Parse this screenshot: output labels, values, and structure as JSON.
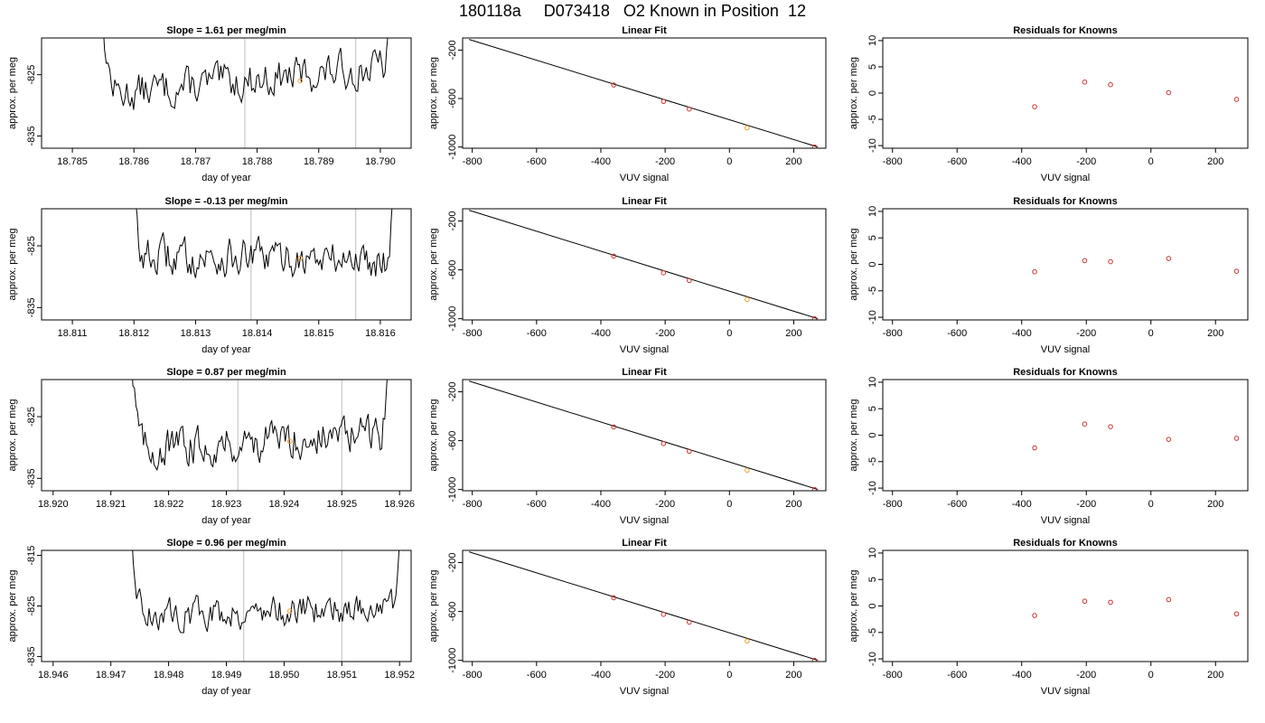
{
  "figure": {
    "title": "180118a     D073418   O2 Known in Position  12",
    "trace_color": "#000000",
    "marker_color": "#f0a030",
    "point_color": "#cc3333",
    "vline_color": "#c8c8c8"
  },
  "rows": [
    {
      "trace": {
        "type": "line",
        "title": "Slope =  1.61  per meg/min",
        "xlabel": "day of year",
        "ylabel": "approx. per meg",
        "xlim": [
          18.7845,
          18.7905
        ],
        "ylim": [
          -837,
          -819
        ],
        "xticks": [
          "18.785",
          "18.786",
          "18.787",
          "18.788",
          "18.789",
          "18.790"
        ],
        "xtick_values": [
          18.785,
          18.786,
          18.787,
          18.788,
          18.789,
          18.79
        ],
        "yticks": [
          "-825",
          "-835"
        ],
        "ytick_values": [
          -825,
          -835
        ],
        "vlines": [
          18.7878,
          18.7896
        ],
        "x_start": 18.7853,
        "x_end": 18.7903,
        "base": -826,
        "trend": 5,
        "marker": {
          "x": 18.7887,
          "y": -826
        }
      },
      "fit": {
        "type": "line",
        "title": "Linear Fit",
        "xlabel": "VUV signal",
        "ylabel": "approx. per meg",
        "xlim": [
          -830,
          300
        ],
        "ylim": [
          -1010,
          -100
        ],
        "xticks": [
          "-800",
          "-600",
          "-400",
          "-200",
          "0",
          "200"
        ],
        "xtick_values": [
          -800,
          -600,
          -400,
          -200,
          0,
          200
        ],
        "yticks": [
          "-200",
          "-600",
          "-1000"
        ],
        "ytick_values": [
          -200,
          -600,
          -1000
        ],
        "line": {
          "x": [
            -810,
            275
          ],
          "y": [
            -112,
            -1000
          ]
        },
        "points_x": [
          -360,
          -205,
          -125,
          55,
          265
        ],
        "points_y": [
          -488,
          -624,
          -687,
          -842,
          -1000
        ]
      },
      "resid": {
        "type": "scatter",
        "title": "Residuals for Knowns",
        "xlabel": "VUV signal",
        "ylabel": "approx. per meg",
        "xlim": [
          -830,
          300
        ],
        "ylim": [
          -10.5,
          10.5
        ],
        "xticks": [
          "-800",
          "-600",
          "-400",
          "-200",
          "0",
          "200"
        ],
        "xtick_values": [
          -800,
          -600,
          -400,
          -200,
          0,
          200
        ],
        "yticks": [
          "10",
          "5",
          "0",
          "-5",
          "-10"
        ],
        "ytick_values": [
          10,
          5,
          0,
          -5,
          -10
        ],
        "x": [
          -360,
          -205,
          -125,
          55,
          265
        ],
        "y": [
          -2.6,
          2.1,
          1.6,
          0.1,
          -1.2
        ]
      }
    },
    {
      "trace": {
        "type": "line",
        "title": "Slope =  -0.13  per meg/min",
        "xlabel": "day of year",
        "ylabel": "approx. per meg",
        "xlim": [
          18.8105,
          18.8165
        ],
        "ylim": [
          -837,
          -819
        ],
        "xticks": [
          "18.811",
          "18.812",
          "18.813",
          "18.814",
          "18.815",
          "18.816"
        ],
        "xtick_values": [
          18.811,
          18.812,
          18.813,
          18.814,
          18.815,
          18.816
        ],
        "yticks": [
          "-825",
          "-835"
        ],
        "ytick_values": [
          -825,
          -835
        ],
        "vlines": [
          18.8139,
          18.8156
        ],
        "x_start": 18.8118,
        "x_end": 18.8163,
        "base": -827,
        "trend": -0.5,
        "marker": {
          "x": 18.8147,
          "y": -827
        }
      },
      "fit": {
        "type": "line",
        "title": "Linear Fit",
        "xlabel": "VUV signal",
        "ylabel": "approx. per meg",
        "xlim": [
          -830,
          300
        ],
        "ylim": [
          -1010,
          -100
        ],
        "xticks": [
          "-800",
          "-600",
          "-400",
          "-200",
          "0",
          "200"
        ],
        "xtick_values": [
          -800,
          -600,
          -400,
          -200,
          0,
          200
        ],
        "yticks": [
          "-200",
          "-600",
          "-1000"
        ],
        "ytick_values": [
          -200,
          -600,
          -1000
        ],
        "line": {
          "x": [
            -810,
            275
          ],
          "y": [
            -112,
            -1000
          ]
        },
        "points_x": [
          -360,
          -205,
          -125,
          55,
          265
        ],
        "points_y": [
          -488,
          -624,
          -687,
          -842,
          -1000
        ]
      },
      "resid": {
        "type": "scatter",
        "title": "Residuals for Knowns",
        "xlabel": "VUV signal",
        "ylabel": "approx. per meg",
        "xlim": [
          -830,
          300
        ],
        "ylim": [
          -10.5,
          10.5
        ],
        "xticks": [
          "-800",
          "-600",
          "-400",
          "-200",
          "0",
          "200"
        ],
        "xtick_values": [
          -800,
          -600,
          -400,
          -200,
          0,
          200
        ],
        "yticks": [
          "10",
          "5",
          "0",
          "-5",
          "-10"
        ],
        "ytick_values": [
          10,
          5,
          0,
          -5,
          -10
        ],
        "x": [
          -360,
          -205,
          -125,
          55,
          265
        ],
        "y": [
          -1.4,
          0.7,
          0.5,
          1.1,
          -1.3
        ]
      }
    },
    {
      "trace": {
        "type": "line",
        "title": "Slope =  0.87  per meg/min",
        "xlabel": "day of year",
        "ylabel": "approx. per meg",
        "xlim": [
          18.9198,
          18.9262
        ],
        "ylim": [
          -837,
          -819
        ],
        "xticks": [
          "18.920",
          "18.921",
          "18.922",
          "18.923",
          "18.924",
          "18.925",
          "18.926"
        ],
        "xtick_values": [
          18.92,
          18.921,
          18.922,
          18.923,
          18.924,
          18.925,
          18.926
        ],
        "yticks": [
          "-825",
          "-835"
        ],
        "ytick_values": [
          -825,
          -835
        ],
        "vlines": [
          18.9232,
          18.925
        ],
        "x_start": 18.9212,
        "x_end": 18.9259,
        "base": -829,
        "trend": 3,
        "marker": {
          "x": 18.9241,
          "y": -829
        }
      },
      "fit": {
        "type": "line",
        "title": "Linear Fit",
        "xlabel": "VUV signal",
        "ylabel": "approx. per meg",
        "xlim": [
          -830,
          300
        ],
        "ylim": [
          -1010,
          -100
        ],
        "xticks": [
          "-800",
          "-600",
          "-400",
          "-200",
          "0",
          "200"
        ],
        "xtick_values": [
          -800,
          -600,
          -400,
          -200,
          0,
          200
        ],
        "yticks": [
          "-200",
          "-600",
          "-1000"
        ],
        "ytick_values": [
          -200,
          -600,
          -1000
        ],
        "line": {
          "x": [
            -810,
            275
          ],
          "y": [
            -112,
            -1000
          ]
        },
        "points_x": [
          -360,
          -205,
          -125,
          55,
          265
        ],
        "points_y": [
          -488,
          -624,
          -687,
          -842,
          -1000
        ]
      },
      "resid": {
        "type": "scatter",
        "title": "Residuals for Knowns",
        "xlabel": "VUV signal",
        "ylabel": "approx. per meg",
        "xlim": [
          -830,
          300
        ],
        "ylim": [
          -10.5,
          10.5
        ],
        "xticks": [
          "-800",
          "-600",
          "-400",
          "-200",
          "0",
          "200"
        ],
        "xtick_values": [
          -800,
          -600,
          -400,
          -200,
          0,
          200
        ],
        "yticks": [
          "10",
          "5",
          "0",
          "-5",
          "-10"
        ],
        "ytick_values": [
          10,
          5,
          0,
          -5,
          -10
        ],
        "x": [
          -360,
          -205,
          -125,
          55,
          265
        ],
        "y": [
          -2.4,
          2.1,
          1.6,
          -0.8,
          -0.6
        ]
      }
    },
    {
      "trace": {
        "type": "line",
        "title": "Slope =  0.96  per meg/min",
        "xlabel": "day of year",
        "ylabel": "approx. per meg",
        "xlim": [
          18.9458,
          18.9522
        ],
        "ylim": [
          -836,
          -814
        ],
        "xticks": [
          "18.946",
          "18.947",
          "18.948",
          "18.949",
          "18.950",
          "18.951",
          "18.952"
        ],
        "xtick_values": [
          18.946,
          18.947,
          18.948,
          18.949,
          18.95,
          18.951,
          18.952
        ],
        "yticks": [
          "-815",
          "-825",
          "-835"
        ],
        "ytick_values": [
          -815,
          -825,
          -835
        ],
        "vlines": [
          18.9493,
          18.951
        ],
        "x_start": 18.9472,
        "x_end": 18.9521,
        "base": -826,
        "trend": 2,
        "marker": {
          "x": 18.9501,
          "y": -826
        }
      },
      "fit": {
        "type": "line",
        "title": "Linear Fit",
        "xlabel": "VUV signal",
        "ylabel": "approx. per meg",
        "xlim": [
          -830,
          300
        ],
        "ylim": [
          -1010,
          -100
        ],
        "xticks": [
          "-800",
          "-600",
          "-400",
          "-200",
          "0",
          "200"
        ],
        "xtick_values": [
          -800,
          -600,
          -400,
          -200,
          0,
          200
        ],
        "yticks": [
          "-200",
          "-600",
          "-1000"
        ],
        "ytick_values": [
          -200,
          -600,
          -1000
        ],
        "line": {
          "x": [
            -810,
            275
          ],
          "y": [
            -112,
            -1000
          ]
        },
        "points_x": [
          -360,
          -205,
          -125,
          55,
          265
        ],
        "points_y": [
          -488,
          -624,
          -687,
          -842,
          -1000
        ]
      },
      "resid": {
        "type": "scatter",
        "title": "Residuals for Knowns",
        "xlabel": "VUV signal",
        "ylabel": "approx. per meg",
        "xlim": [
          -830,
          300
        ],
        "ylim": [
          -10.5,
          10.5
        ],
        "xticks": [
          "-800",
          "-600",
          "-400",
          "-200",
          "0",
          "200"
        ],
        "xtick_values": [
          -800,
          -600,
          -400,
          -200,
          0,
          200
        ],
        "yticks": [
          "10",
          "5",
          "0",
          "-5",
          "-10"
        ],
        "ytick_values": [
          10,
          5,
          0,
          -5,
          -10
        ],
        "x": [
          -360,
          -205,
          -125,
          55,
          265
        ],
        "y": [
          -1.8,
          0.9,
          0.7,
          1.2,
          -1.5
        ]
      }
    }
  ]
}
